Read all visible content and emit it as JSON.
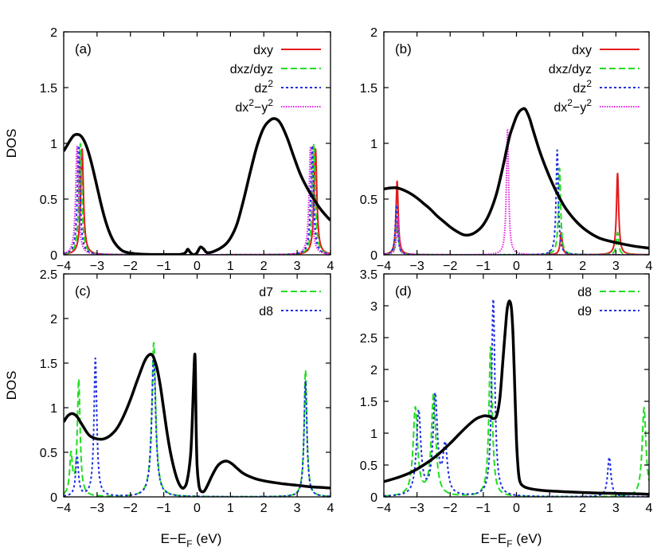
{
  "figure": {
    "ylabel": "DOS",
    "xlabel_main": "E−E",
    "xlabel_sub": "F",
    "xlabel_tail": " (eV)"
  },
  "colors": {
    "total": "#000000",
    "red": "#e41a1c",
    "green": "#22dd22",
    "blue": "#1f2fe0",
    "magenta": "#e020e0"
  },
  "chart_data": [
    {
      "type": "line",
      "panel_label": "(a)",
      "xlim": [
        -4,
        4
      ],
      "ylim": [
        0,
        2
      ],
      "xticks": [
        "−4",
        "−3",
        "−2",
        "−1",
        "0",
        "1",
        "2",
        "3",
        "4"
      ],
      "yticks": [
        "0",
        "0.5",
        "1",
        "1.5",
        "2"
      ],
      "show_ylabel": true,
      "show_xlabel": false,
      "legend": [
        {
          "main": "dxy",
          "sup1": "",
          "tail": "",
          "sup2": "",
          "end": "",
          "color": "red",
          "dash": "solid"
        },
        {
          "main": "dxz/dyz",
          "sup1": "",
          "tail": "",
          "sup2": "",
          "end": "",
          "color": "green",
          "dash": "dashed"
        },
        {
          "main": "dz",
          "sup1": "2",
          "tail": "",
          "sup2": "",
          "end": "",
          "color": "blue",
          "dash": "dotted"
        },
        {
          "main": "dx",
          "sup1": "2",
          "tail": "−y",
          "sup2": "2",
          "end": "",
          "color": "magenta",
          "dash": "dense-dotted"
        }
      ],
      "series": [
        {
          "color": "total",
          "dash": "solid",
          "width": 3.5,
          "x": [
            -4.0,
            -3.9,
            -3.8,
            -3.7,
            -3.6,
            -3.5,
            -3.4,
            -3.3,
            -3.2,
            -3.1,
            -3.0,
            -2.9,
            -2.8,
            -2.7,
            -2.6,
            -2.5,
            -2.4,
            -2.3,
            -2.2,
            -2.0,
            -1.8,
            -1.5,
            -1.0,
            -0.5,
            -0.35,
            -0.28,
            -0.2,
            -0.1,
            0.0,
            0.1,
            0.2,
            0.3,
            0.5,
            0.8,
            1.0,
            1.2,
            1.4,
            1.6,
            1.8,
            2.0,
            2.2,
            2.35,
            2.5,
            2.7,
            2.9,
            3.1,
            3.3,
            3.5,
            3.7,
            3.9,
            4.0
          ],
          "y": [
            0.93,
            0.98,
            1.03,
            1.07,
            1.08,
            1.07,
            1.03,
            0.96,
            0.86,
            0.74,
            0.61,
            0.48,
            0.36,
            0.26,
            0.18,
            0.12,
            0.08,
            0.05,
            0.03,
            0.015,
            0.008,
            0.004,
            0.003,
            0.004,
            0.02,
            0.05,
            0.02,
            0.0,
            0.02,
            0.07,
            0.05,
            0.02,
            0.03,
            0.08,
            0.15,
            0.28,
            0.5,
            0.75,
            0.98,
            1.14,
            1.21,
            1.22,
            1.18,
            1.05,
            0.88,
            0.72,
            0.6,
            0.5,
            0.41,
            0.34,
            0.31
          ]
        },
        {
          "color": "red",
          "dash": "solid",
          "width": 2,
          "peaks": [
            [
              -3.45,
              0.95,
              0.05
            ],
            [
              3.55,
              0.95,
              0.05
            ]
          ]
        },
        {
          "color": "green",
          "dash": "dashed",
          "width": 2,
          "peaks": [
            [
              -3.5,
              1.0,
              0.05
            ],
            [
              3.5,
              1.0,
              0.05
            ]
          ]
        },
        {
          "color": "blue",
          "dash": "dotted",
          "width": 2,
          "peaks": [
            [
              -3.55,
              0.98,
              0.05
            ],
            [
              3.45,
              0.98,
              0.05
            ]
          ]
        },
        {
          "color": "magenta",
          "dash": "dense-dotted",
          "width": 2,
          "peaks": [
            [
              -3.6,
              0.97,
              0.05
            ],
            [
              3.4,
              0.97,
              0.05
            ]
          ]
        }
      ]
    },
    {
      "type": "line",
      "panel_label": "(b)",
      "xlim": [
        -4,
        4
      ],
      "ylim": [
        0,
        2
      ],
      "xticks": [
        "−4",
        "−3",
        "−2",
        "−1",
        "0",
        "1",
        "2",
        "3",
        "4"
      ],
      "yticks": [
        "0",
        "0.5",
        "1",
        "1.5",
        "2"
      ],
      "show_ylabel": false,
      "show_xlabel": false,
      "legend": [
        {
          "main": "dxy",
          "sup1": "",
          "tail": "",
          "sup2": "",
          "end": "",
          "color": "red",
          "dash": "solid"
        },
        {
          "main": "dxz/dyz",
          "sup1": "",
          "tail": "",
          "sup2": "",
          "end": "",
          "color": "green",
          "dash": "dashed"
        },
        {
          "main": "dz",
          "sup1": "2",
          "tail": "",
          "sup2": "",
          "end": "",
          "color": "blue",
          "dash": "dotted"
        },
        {
          "main": "dx",
          "sup1": "2",
          "tail": "−y",
          "sup2": "2",
          "end": "",
          "color": "magenta",
          "dash": "dense-dotted"
        }
      ],
      "series": [
        {
          "color": "total",
          "dash": "solid",
          "width": 3.5,
          "x": [
            -4.0,
            -3.8,
            -3.6,
            -3.4,
            -3.2,
            -3.0,
            -2.8,
            -2.6,
            -2.4,
            -2.2,
            -2.0,
            -1.8,
            -1.6,
            -1.4,
            -1.2,
            -1.0,
            -0.8,
            -0.6,
            -0.4,
            -0.3,
            -0.2,
            -0.1,
            0.0,
            0.1,
            0.2,
            0.25,
            0.3,
            0.4,
            0.5,
            0.7,
            0.9,
            1.1,
            1.3,
            1.5,
            1.8,
            2.1,
            2.5,
            3.0,
            3.5,
            4.0
          ],
          "y": [
            0.59,
            0.6,
            0.6,
            0.58,
            0.55,
            0.51,
            0.46,
            0.41,
            0.35,
            0.3,
            0.25,
            0.21,
            0.18,
            0.18,
            0.21,
            0.27,
            0.38,
            0.55,
            0.8,
            0.94,
            1.07,
            1.16,
            1.24,
            1.29,
            1.31,
            1.31,
            1.29,
            1.22,
            1.12,
            0.93,
            0.77,
            0.63,
            0.51,
            0.41,
            0.3,
            0.22,
            0.15,
            0.11,
            0.08,
            0.06
          ]
        },
        {
          "color": "red",
          "dash": "solid",
          "width": 2,
          "peaks": [
            [
              -3.6,
              0.66,
              0.04
            ],
            [
              3.05,
              0.73,
              0.04
            ],
            [
              1.35,
              0.2,
              0.04
            ]
          ]
        },
        {
          "color": "green",
          "dash": "dashed",
          "width": 2,
          "peaks": [
            [
              -3.6,
              0.3,
              0.04
            ],
            [
              1.3,
              0.78,
              0.04
            ],
            [
              3.05,
              0.2,
              0.04
            ]
          ]
        },
        {
          "color": "blue",
          "dash": "dotted",
          "width": 2,
          "peaks": [
            [
              -3.62,
              0.45,
              0.04
            ],
            [
              1.23,
              0.94,
              0.04
            ]
          ]
        },
        {
          "color": "magenta",
          "dash": "dense-dotted",
          "width": 2,
          "peaks": [
            [
              -3.58,
              0.34,
              0.04
            ],
            [
              -0.27,
              1.13,
              0.04
            ]
          ]
        }
      ]
    },
    {
      "type": "line",
      "panel_label": "(c)",
      "xlim": [
        -4,
        4
      ],
      "ylim": [
        0,
        2.5
      ],
      "xticks": [
        "−4",
        "−3",
        "−2",
        "−1",
        "0",
        "1",
        "2",
        "3",
        "4"
      ],
      "yticks": [
        "0",
        "0.5",
        "1",
        "1.5",
        "2",
        "2.5"
      ],
      "show_ylabel": true,
      "show_xlabel": true,
      "legend": [
        {
          "main": "d7",
          "sup1": "",
          "tail": "",
          "sup2": "",
          "end": "",
          "color": "green",
          "dash": "dashed"
        },
        {
          "main": "d8",
          "sup1": "",
          "tail": "",
          "sup2": "",
          "end": "",
          "color": "blue",
          "dash": "dotted"
        }
      ],
      "series": [
        {
          "color": "total",
          "dash": "solid",
          "width": 3.5,
          "x": [
            -4.0,
            -3.9,
            -3.8,
            -3.7,
            -3.6,
            -3.5,
            -3.4,
            -3.3,
            -3.2,
            -3.0,
            -2.8,
            -2.6,
            -2.4,
            -2.2,
            -2.0,
            -1.8,
            -1.6,
            -1.5,
            -1.4,
            -1.35,
            -1.3,
            -1.2,
            -1.1,
            -1.0,
            -0.9,
            -0.8,
            -0.7,
            -0.6,
            -0.5,
            -0.4,
            -0.3,
            -0.2,
            -0.15,
            -0.1,
            -0.07,
            -0.05,
            -0.03,
            0.0,
            0.05,
            0.1,
            0.2,
            0.3,
            0.45,
            0.6,
            0.75,
            0.9,
            1.05,
            1.2,
            1.4,
            1.7,
            2.0,
            2.5,
            3.0,
            3.5,
            4.0
          ],
          "y": [
            0.84,
            0.9,
            0.93,
            0.93,
            0.9,
            0.84,
            0.78,
            0.72,
            0.68,
            0.65,
            0.65,
            0.69,
            0.77,
            0.91,
            1.09,
            1.3,
            1.5,
            1.57,
            1.6,
            1.59,
            1.56,
            1.44,
            1.24,
            0.98,
            0.72,
            0.5,
            0.33,
            0.2,
            0.12,
            0.1,
            0.18,
            0.45,
            0.8,
            1.35,
            1.6,
            1.4,
            0.8,
            0.35,
            0.14,
            0.07,
            0.06,
            0.12,
            0.24,
            0.34,
            0.39,
            0.4,
            0.37,
            0.32,
            0.26,
            0.21,
            0.18,
            0.15,
            0.13,
            0.11,
            0.1
          ]
        },
        {
          "color": "green",
          "dash": "dashed",
          "width": 2,
          "peaks": [
            [
              -3.55,
              1.3,
              0.05
            ],
            [
              -3.78,
              0.45,
              0.05
            ],
            [
              -1.3,
              1.73,
              0.07
            ],
            [
              3.25,
              1.42,
              0.05
            ]
          ]
        },
        {
          "color": "blue",
          "dash": "dotted",
          "width": 2,
          "peaks": [
            [
              -3.05,
              1.55,
              0.05
            ],
            [
              -3.6,
              0.45,
              0.05
            ],
            [
              -1.3,
              1.58,
              0.07
            ],
            [
              3.25,
              1.3,
              0.05
            ]
          ]
        }
      ]
    },
    {
      "type": "line",
      "panel_label": "(d)",
      "xlim": [
        -4,
        4
      ],
      "ylim": [
        0,
        3.5
      ],
      "xticks": [
        "−4",
        "−3",
        "−2",
        "−1",
        "0",
        "1",
        "2",
        "3",
        "4"
      ],
      "yticks": [
        "0",
        "0.5",
        "1",
        "1.5",
        "2",
        "2.5",
        "3",
        "3.5"
      ],
      "show_ylabel": false,
      "show_xlabel": true,
      "legend": [
        {
          "main": "d8",
          "sup1": "",
          "tail": "",
          "sup2": "",
          "end": "",
          "color": "green",
          "dash": "dashed"
        },
        {
          "main": "d9",
          "sup1": "",
          "tail": "",
          "sup2": "",
          "end": "",
          "color": "blue",
          "dash": "dotted"
        }
      ],
      "series": [
        {
          "color": "total",
          "dash": "solid",
          "width": 3.5,
          "x": [
            -4.0,
            -3.6,
            -3.2,
            -2.8,
            -2.4,
            -2.0,
            -1.7,
            -1.4,
            -1.2,
            -1.0,
            -0.9,
            -0.8,
            -0.7,
            -0.6,
            -0.5,
            -0.4,
            -0.3,
            -0.25,
            -0.2,
            -0.15,
            -0.1,
            -0.05,
            0.0,
            0.05,
            0.1,
            0.2,
            0.4,
            0.8,
            1.5,
            2.5,
            3.5,
            4.0
          ],
          "y": [
            0.24,
            0.3,
            0.38,
            0.5,
            0.65,
            0.84,
            1.0,
            1.15,
            1.23,
            1.27,
            1.27,
            1.26,
            1.23,
            1.27,
            1.55,
            2.2,
            2.85,
            3.03,
            3.07,
            2.95,
            2.5,
            1.7,
            0.9,
            0.45,
            0.25,
            0.17,
            0.13,
            0.1,
            0.08,
            0.06,
            0.05,
            0.04
          ]
        },
        {
          "color": "green",
          "dash": "dashed",
          "width": 2,
          "peaks": [
            [
              -3.05,
              1.38,
              0.08
            ],
            [
              -2.5,
              1.6,
              0.08
            ],
            [
              -0.78,
              2.35,
              0.06
            ],
            [
              3.85,
              1.4,
              0.07
            ]
          ]
        },
        {
          "color": "blue",
          "dash": "dotted",
          "width": 2,
          "peaks": [
            [
              -2.95,
              1.32,
              0.08
            ],
            [
              -2.45,
              1.55,
              0.08
            ],
            [
              -2.15,
              0.75,
              0.08
            ],
            [
              -0.7,
              3.1,
              0.06
            ],
            [
              2.8,
              0.62,
              0.06
            ]
          ]
        }
      ]
    }
  ]
}
